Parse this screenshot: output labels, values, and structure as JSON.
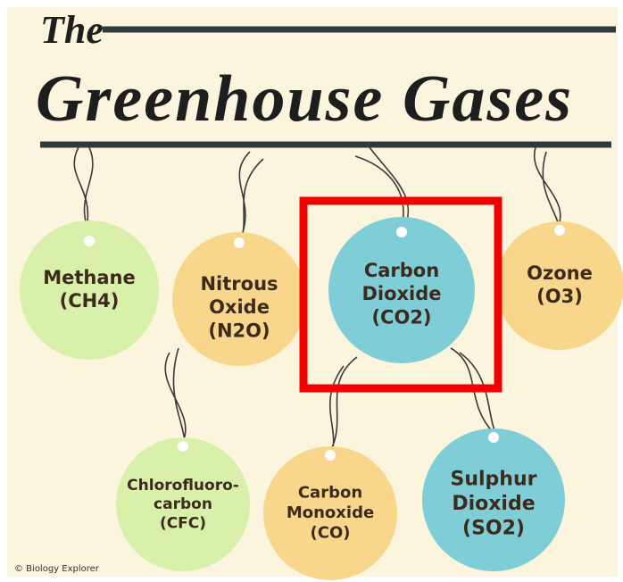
{
  "header": {
    "the": "The",
    "title": "Greenhouse Gases"
  },
  "nodes": [
    {
      "lines": [
        "Methane",
        "(CH4)"
      ]
    },
    {
      "lines": [
        "Nitrous",
        "Oxide",
        "(N2O)"
      ]
    },
    {
      "lines": [
        "Carbon",
        "Dioxide",
        "(CO2)"
      ]
    },
    {
      "lines": [
        "Ozone",
        "(O3)"
      ]
    },
    {
      "lines": [
        "Chlorofluoro-",
        "carbon",
        "(CFC)"
      ]
    },
    {
      "lines": [
        "Carbon",
        "Monoxide",
        "(CO)"
      ]
    },
    {
      "lines": [
        "Sulphur",
        "Dioxide",
        "(SO2)"
      ]
    }
  ],
  "credit": "© Biology Explorer"
}
